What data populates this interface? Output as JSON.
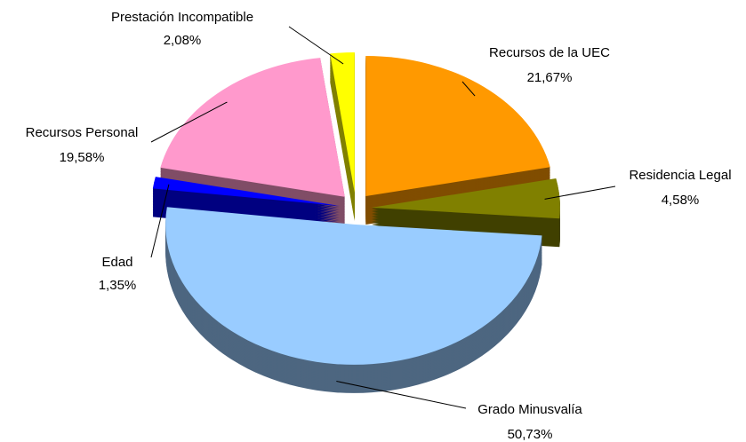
{
  "chart_data": {
    "type": "pie3d",
    "categories": [
      "Recursos de la UEC",
      "Residencia Legal",
      "Grado Minusvalía",
      "Edad",
      "Recursos Personal",
      "Prestación Incompatible"
    ],
    "values": [
      21.67,
      4.58,
      50.73,
      1.35,
      19.58,
      2.08
    ],
    "value_labels": [
      "21,67%",
      "4,58%",
      "50,73%",
      "1,35%",
      "19,58%",
      "2,08%"
    ],
    "colors": [
      "#ff9900",
      "#808000",
      "#99ccff",
      "#0000ff",
      "#ff99cc",
      "#ffff00"
    ]
  }
}
